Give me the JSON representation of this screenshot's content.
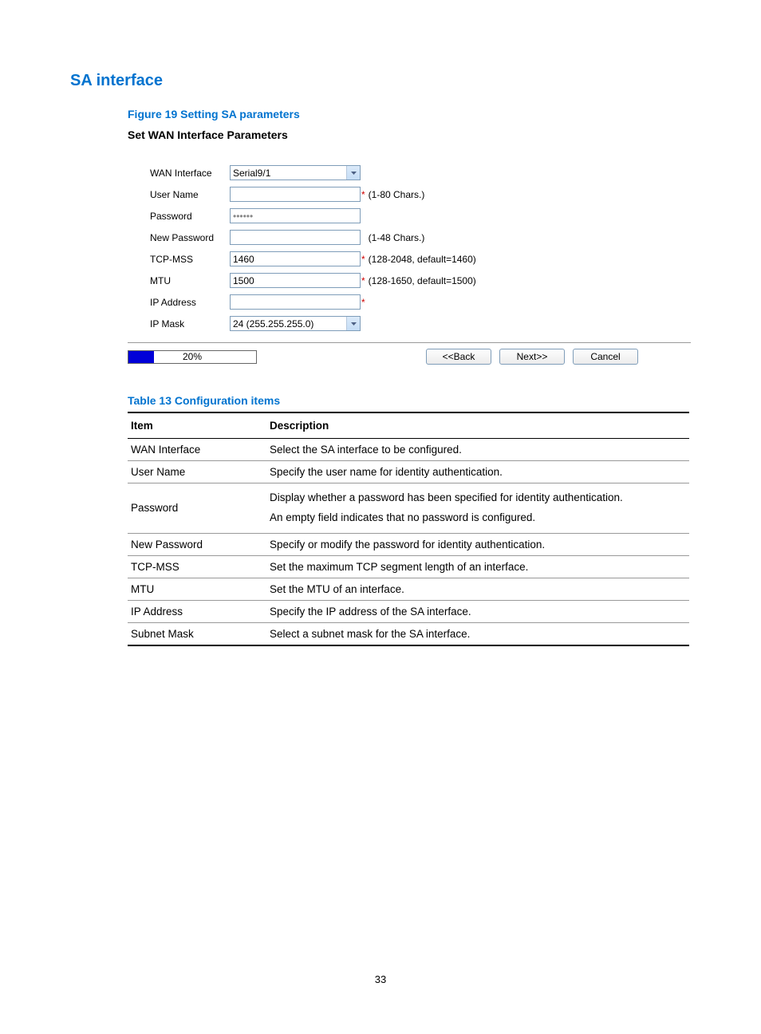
{
  "headings": {
    "section": "SA interface",
    "figure": "Figure 19 Setting SA parameters",
    "panel": "Set WAN Interface Parameters",
    "table_caption": "Table 13 Configuration items"
  },
  "form": {
    "wan_interface": {
      "label": "WAN Interface",
      "value": "Serial9/1"
    },
    "user_name": {
      "label": "User Name",
      "value": "",
      "hint": "(1-80 Chars.)",
      "required": true
    },
    "password": {
      "label": "Password",
      "value": "••••••"
    },
    "new_password": {
      "label": "New Password",
      "value": "",
      "hint": "(1-48 Chars.)",
      "required": false
    },
    "tcp_mss": {
      "label": "TCP-MSS",
      "value": "1460",
      "hint": "(128-2048, default=1460)",
      "required": true
    },
    "mtu": {
      "label": "MTU",
      "value": "1500",
      "hint": "(128-1650, default=1500)",
      "required": true
    },
    "ip_address": {
      "label": "IP Address",
      "value": "",
      "required": true
    },
    "ip_mask": {
      "label": "IP Mask",
      "value": "24 (255.255.255.0)"
    }
  },
  "progress": {
    "percent": 20,
    "text": "20%",
    "fill_color": "#0000d8"
  },
  "buttons": {
    "back": "<<Back",
    "next": "Next>>",
    "cancel": "Cancel"
  },
  "asterisk": "*",
  "table": {
    "head_item": "Item",
    "head_desc": "Description",
    "rows": [
      {
        "item": "WAN Interface",
        "desc": "Select the SA interface to be configured."
      },
      {
        "item": "User Name",
        "desc": "Specify the user name for identity authentication."
      },
      {
        "item": "Password",
        "desc": "Display whether a password has been specified for identity authentication.\nAn empty field indicates that no password is configured."
      },
      {
        "item": "New Password",
        "desc": "Specify or modify the password for identity authentication."
      },
      {
        "item": "TCP-MSS",
        "desc": "Set the maximum TCP segment length of an interface."
      },
      {
        "item": "MTU",
        "desc": "Set the MTU of an interface."
      },
      {
        "item": "IP Address",
        "desc": "Specify the IP address of the SA interface."
      },
      {
        "item": "Subnet Mask",
        "desc": "Select a subnet mask for the SA interface."
      }
    ]
  },
  "page_number": "33"
}
